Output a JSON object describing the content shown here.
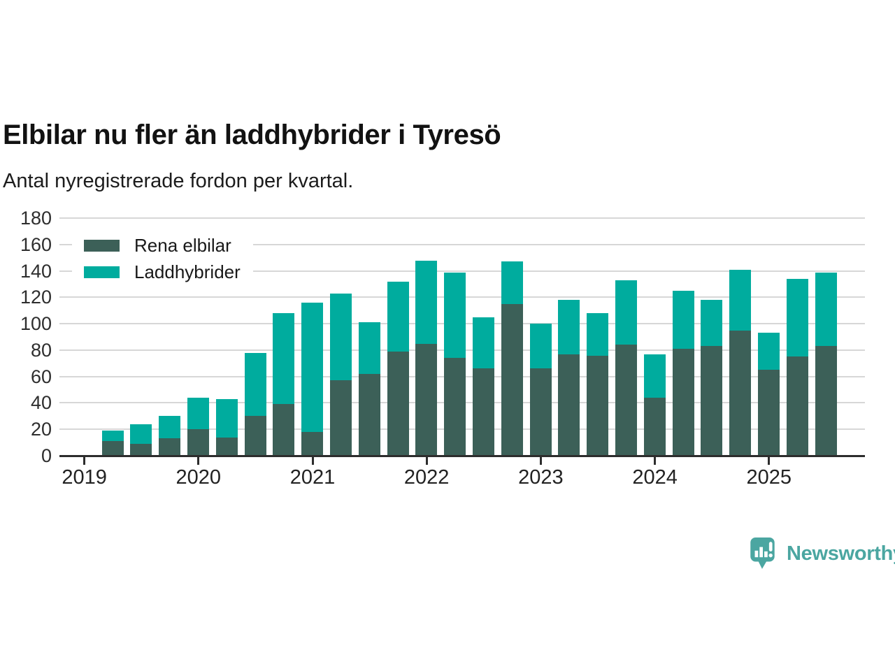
{
  "title": "Elbilar nu fler än laddhybrider i Tyresö",
  "subtitle": "Antal nyregistrerade fordon per kvartal.",
  "legend": {
    "items": [
      {
        "label": "Rena elbilar",
        "color": "#3C6058"
      },
      {
        "label": "Laddhybrider",
        "color": "#00AC9E"
      }
    ]
  },
  "brand": {
    "name": "Newsworthy",
    "color": "#4BA6A1",
    "icon": "newsworthy-speech-bubble-bar-chart-icon"
  },
  "colors": {
    "elbilar": "#3C6058",
    "laddhybrider": "#00AC9E",
    "grid": "#D7D7D7",
    "axis": "#2D2D2D",
    "title_text": "#121212",
    "tick_text": "#2E2E2E"
  },
  "chart_data": {
    "type": "bar",
    "stacked": true,
    "title": "Elbilar nu fler än laddhybrider i Tyresö",
    "subtitle": "Antal nyregistrerade fordon per kvartal.",
    "xlabel": "",
    "ylabel": "",
    "ylim": [
      0,
      180
    ],
    "y_ticks": [
      0,
      20,
      40,
      60,
      80,
      100,
      120,
      140,
      160,
      180
    ],
    "grid": true,
    "legend_position": "top-left",
    "x_tick_labels": [
      "2019",
      "2020",
      "2021",
      "2022",
      "2023",
      "2024",
      "2025"
    ],
    "categories": [
      "2019 Q2",
      "2019 Q3",
      "2019 Q4",
      "2020 Q1",
      "2020 Q2",
      "2020 Q3",
      "2020 Q4",
      "2021 Q1",
      "2021 Q2",
      "2021 Q3",
      "2021 Q4",
      "2022 Q1",
      "2022 Q2",
      "2022 Q3",
      "2022 Q4",
      "2023 Q1",
      "2023 Q2",
      "2023 Q3",
      "2023 Q4",
      "2024 Q1",
      "2024 Q2",
      "2024 Q3",
      "2024 Q4",
      "2025 Q1",
      "2025 Q2",
      "2025 Q3"
    ],
    "series": [
      {
        "name": "Rena elbilar",
        "color": "#3C6058",
        "values": [
          11,
          9,
          13,
          20,
          14,
          30,
          39,
          18,
          57,
          62,
          79,
          85,
          74,
          66,
          115,
          66,
          77,
          76,
          84,
          44,
          81,
          83,
          95,
          65,
          75,
          83
        ]
      },
      {
        "name": "Laddhybrider",
        "color": "#00AC9E",
        "values": [
          8,
          15,
          17,
          24,
          29,
          48,
          69,
          98,
          66,
          39,
          53,
          63,
          65,
          39,
          32,
          34,
          41,
          32,
          49,
          33,
          44,
          35,
          46,
          28,
          59,
          56
        ]
      }
    ]
  }
}
